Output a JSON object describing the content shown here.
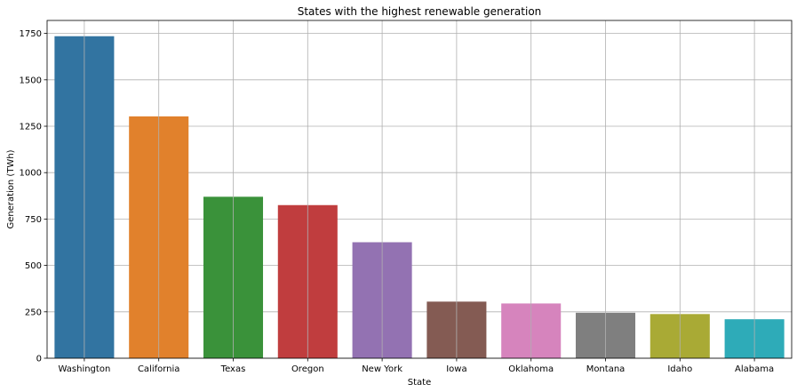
{
  "chart_data": {
    "type": "bar",
    "title": "States with the highest renewable generation",
    "xlabel": "State",
    "ylabel": "Generation (TWh)",
    "categories": [
      "Washington",
      "California",
      "Texas",
      "Oregon",
      "New York",
      "Iowa",
      "Oklahoma",
      "Montana",
      "Idaho",
      "Alabama"
    ],
    "values": [
      1735,
      1303,
      870,
      825,
      625,
      305,
      295,
      245,
      238,
      210
    ],
    "colors": [
      "#3274a1",
      "#e1812c",
      "#3a923a",
      "#c03d3e",
      "#9372b2",
      "#845b53",
      "#d684bd",
      "#7f7f7f",
      "#a9aa35",
      "#2eabb8"
    ],
    "ylim": [
      0,
      1820
    ],
    "yticks": [
      0,
      250,
      500,
      750,
      1000,
      1250,
      1500,
      1750
    ],
    "grid": true
  }
}
